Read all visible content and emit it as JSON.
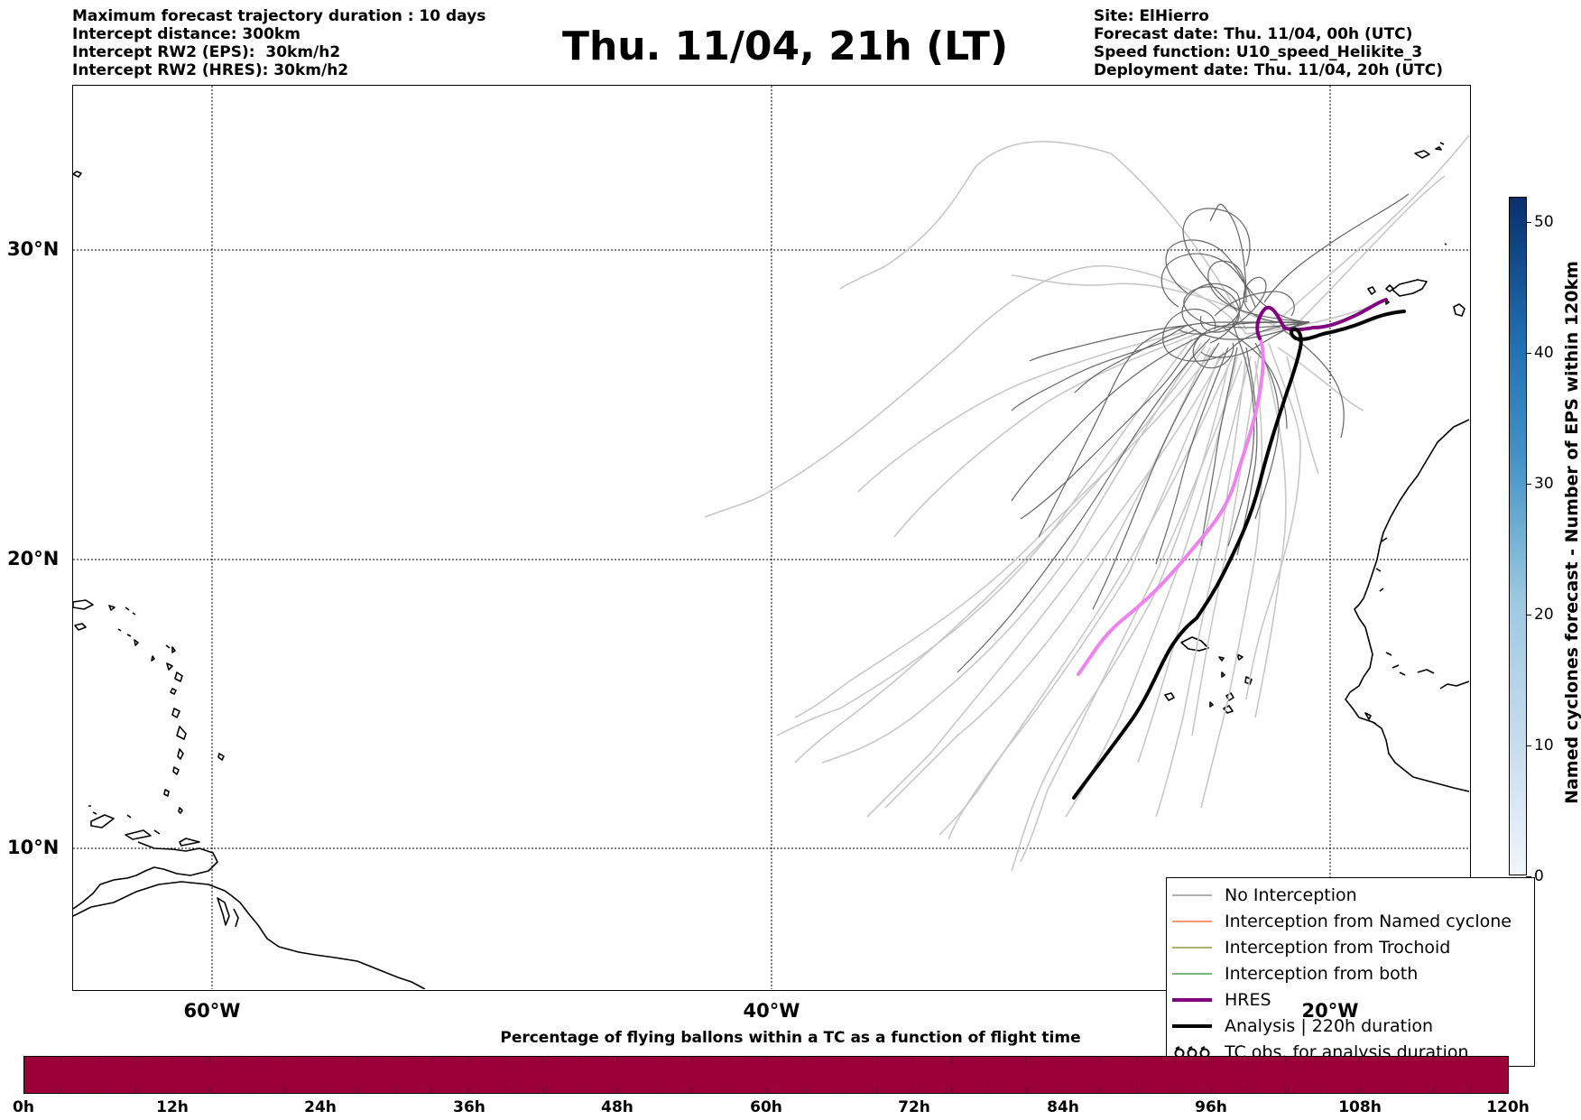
{
  "header": {
    "info_left": [
      "Maximum forecast trajectory duration : 10 days",
      "Intercept distance: 300km",
      "Intercept RW2 (EPS):  30km/h2",
      "Intercept RW2 (HRES): 30km/h2"
    ],
    "title": "Thu. 11/04, 21h (LT)",
    "info_right": [
      "Site: ElHierro",
      "Forecast date: Thu. 11/04, 00h (UTC)",
      "Speed function: U10_speed_Helikite_3",
      "Deployment date: Thu. 11/04, 20h (UTC)"
    ]
  },
  "map": {
    "lat_labels": [
      "30°N",
      "20°N",
      "10°N"
    ],
    "lon_labels": [
      "60°W",
      "40°W",
      "20°W"
    ],
    "colors": {
      "eps_dark": "#666666",
      "eps_light": "#c8c8c8",
      "hres_purple": "#800080",
      "hres_pink": "#ee82ee",
      "analysis": "#000000",
      "coast": "#000000"
    }
  },
  "legend": {
    "items": [
      {
        "label": "No Interception",
        "color": "#808080"
      },
      {
        "label": "Interception from Named cyclone",
        "color": "#ff5a1e"
      },
      {
        "label": "Interception from Trochoid",
        "color": "#808020"
      },
      {
        "label": "Interception from both",
        "color": "#228b22"
      },
      {
        "label": "HRES",
        "color": "#800080"
      },
      {
        "label": "Analysis | 220h duration",
        "color": "#000000"
      },
      {
        "label": "TC obs. for analysis duration",
        "icon": "cyclone-symbols-icon"
      }
    ]
  },
  "colorbar_right": {
    "label": "Named cyclones forecast - Number of EPS within 120km",
    "ticks": [
      "50",
      "40",
      "30",
      "20",
      "10",
      "0"
    ],
    "range": [
      0,
      52
    ]
  },
  "colorbar_bottom": {
    "title": "Percentage of flying ballons within a TC as a function of flight time",
    "ticks": [
      "0h",
      "12h",
      "24h",
      "36h",
      "48h",
      "60h",
      "72h",
      "84h",
      "96h",
      "108h",
      "120h"
    ],
    "color": "#9b0039"
  }
}
